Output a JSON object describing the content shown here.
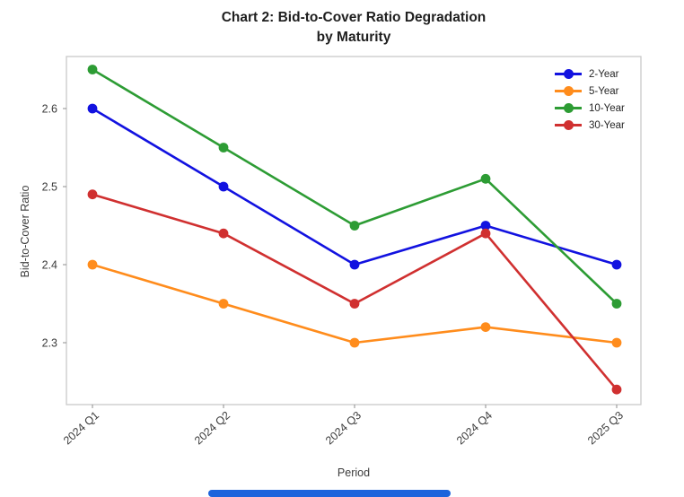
{
  "figure": {
    "title_line1": "Chart 2: Bid-to-Cover Ratio Degradation",
    "title_line2": "by Maturity"
  },
  "chart_data": {
    "type": "line",
    "title": "Chart 2: Bid-to-Cover Ratio Degradation by Maturity",
    "xlabel": "Period",
    "ylabel": "Bid-to-Cover Ratio",
    "categories": [
      "2024 Q1",
      "2024 Q2",
      "2024 Q3",
      "2024 Q4",
      "2025 Q3"
    ],
    "series": [
      {
        "name": "2-Year",
        "color": "#1212e0",
        "values": [
          2.6,
          2.5,
          2.4,
          2.45,
          2.4
        ]
      },
      {
        "name": "5-Year",
        "color": "#ff8c1c",
        "values": [
          2.4,
          2.35,
          2.3,
          2.32,
          2.3
        ]
      },
      {
        "name": "10-Year",
        "color": "#2d9c34",
        "values": [
          2.65,
          2.55,
          2.45,
          2.51,
          2.35
        ]
      },
      {
        "name": "30-Year",
        "color": "#d03030",
        "values": [
          2.49,
          2.44,
          2.35,
          2.44,
          2.24
        ]
      }
    ],
    "yticks": [
      2.3,
      2.4,
      2.5,
      2.6
    ],
    "ylim": [
      2.22,
      2.667
    ],
    "grid": false,
    "legend_position": "upper right",
    "colors": {
      "spine": "#c9c9c9",
      "tick": "#8c8c8c",
      "tick_label": "#3c3c3c",
      "bottom_bar": "#1c64dc"
    }
  }
}
